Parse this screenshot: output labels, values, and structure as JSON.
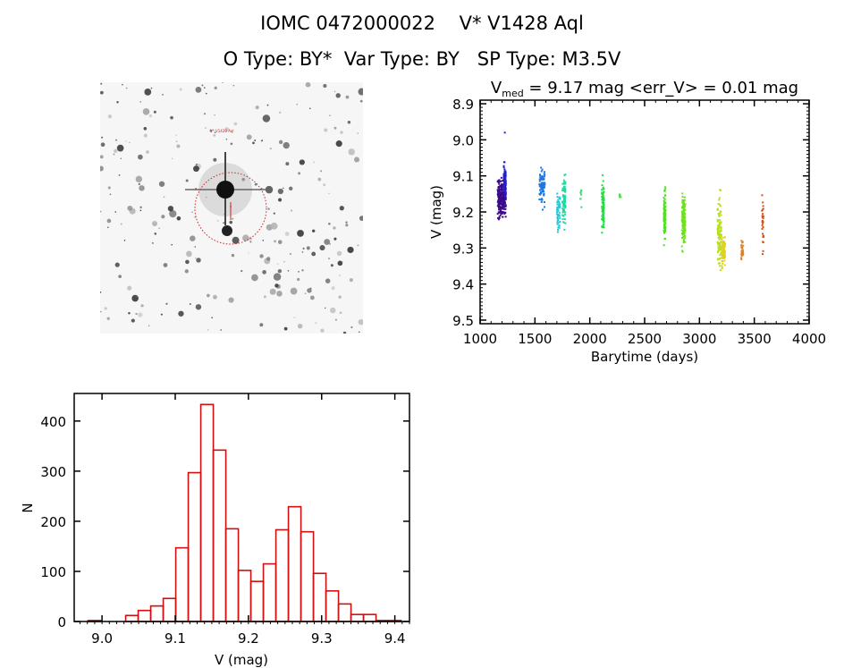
{
  "header": {
    "line1": "IOMC 0472000022    V* V1428 Aql",
    "line2": "O Type: BY*  Var Type: BY   SP Type: M3.5V"
  },
  "sky_image": {
    "labels": [
      "V* V1428 Aql"
    ],
    "circle_color": "#cc2222"
  },
  "chart_data": [
    {
      "type": "scatter",
      "title_main": "V",
      "title_sub": "med",
      "title_rest": " = 9.17 mag <err_V> = 0.01 mag",
      "xlabel": "Barytime (days)",
      "ylabel": "V (mag)",
      "xlim": [
        1000,
        4000
      ],
      "ylim": [
        8.89,
        9.51
      ],
      "y_inverted": true,
      "xticks": [
        1000,
        1500,
        2000,
        2500,
        3000,
        3500,
        4000
      ],
      "yticks": [
        8.9,
        9.0,
        9.1,
        9.2,
        9.3,
        9.4,
        9.5
      ],
      "ytick_labels": [
        "8.9",
        "9.0",
        "9.1",
        "9.2",
        "9.3",
        "9.4",
        "9.5"
      ],
      "groups": [
        {
          "x": [
            1160,
            1235
          ],
          "v": [
            9.09,
            9.23
          ],
          "color": "#3a0a8a",
          "n": 260
        },
        {
          "x": [
            1215,
            1235
          ],
          "v": [
            9.04,
            9.18
          ],
          "color": "#2020d0",
          "n": 80
        },
        {
          "x": [
            1225,
            1226
          ],
          "v": [
            8.98,
            8.98
          ],
          "color": "#2020d0",
          "n": 1
        },
        {
          "x": [
            1540,
            1590
          ],
          "v": [
            9.06,
            9.2
          ],
          "color": "#1e78e0",
          "n": 80
        },
        {
          "x": [
            1700,
            1730
          ],
          "v": [
            9.12,
            9.28
          ],
          "color": "#20c8d8",
          "n": 50
        },
        {
          "x": [
            1750,
            1780
          ],
          "v": [
            9.08,
            9.27
          ],
          "color": "#20d8a0",
          "n": 70
        },
        {
          "x": [
            1915,
            1925
          ],
          "v": [
            9.14,
            9.19
          ],
          "color": "#30e070",
          "n": 8
        },
        {
          "x": [
            2110,
            2130
          ],
          "v": [
            9.08,
            9.29
          ],
          "color": "#20e040",
          "n": 90
        },
        {
          "x": [
            2270,
            2285
          ],
          "v": [
            9.15,
            9.16
          ],
          "color": "#40e040",
          "n": 6
        },
        {
          "x": [
            2675,
            2690
          ],
          "v": [
            9.11,
            9.31
          ],
          "color": "#50e020",
          "n": 110
        },
        {
          "x": [
            2840,
            2870
          ],
          "v": [
            9.12,
            9.32
          ],
          "color": "#70e020",
          "n": 130
        },
        {
          "x": [
            3165,
            3200
          ],
          "v": [
            9.12,
            9.4
          ],
          "color": "#b8e020",
          "n": 110
        },
        {
          "x": [
            3200,
            3235
          ],
          "v": [
            9.24,
            9.37
          ],
          "color": "#e0d020",
          "n": 80
        },
        {
          "x": [
            3380,
            3400
          ],
          "v": [
            9.26,
            9.35
          ],
          "color": "#e08020",
          "n": 30
        },
        {
          "x": [
            3570,
            3585
          ],
          "v": [
            9.14,
            9.34
          ],
          "color": "#d85018",
          "n": 30
        }
      ]
    },
    {
      "type": "bar",
      "subtype": "histogram",
      "xlabel": "V (mag)",
      "ylabel": "N",
      "xlim": [
        8.962,
        9.42
      ],
      "ylim": [
        0,
        455
      ],
      "xticks": [
        9.0,
        9.1,
        9.2,
        9.3,
        9.4
      ],
      "xtick_labels": [
        "9.0",
        "9.1",
        "9.2",
        "9.3",
        "9.4"
      ],
      "yticks": [
        0,
        100,
        200,
        300,
        400
      ],
      "ytick_labels": [
        "0",
        "100",
        "200",
        "300",
        "400"
      ],
      "bin_start": 8.981,
      "bin_width": 0.0171,
      "values": [
        2,
        0,
        0,
        12,
        22,
        31,
        46,
        147,
        297,
        433,
        342,
        185,
        102,
        80,
        115,
        183,
        229,
        179,
        96,
        61,
        35,
        14,
        14,
        2,
        2
      ],
      "color": "#d01010"
    }
  ]
}
